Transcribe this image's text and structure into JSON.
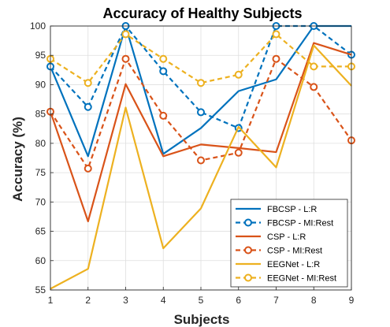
{
  "chart_data": {
    "type": "line",
    "title": "Accuracy of Healthy Subjects",
    "xlabel": "Subjects",
    "ylabel": "Accuracy (%)",
    "x": [
      1,
      2,
      3,
      4,
      5,
      6,
      7,
      8,
      9
    ],
    "xlim": [
      1,
      9
    ],
    "ylim": [
      55,
      100
    ],
    "xticks": [
      "1",
      "2",
      "3",
      "4",
      "5",
      "6",
      "7",
      "8",
      "9"
    ],
    "yticks": [
      "55",
      "60",
      "65",
      "70",
      "75",
      "80",
      "85",
      "90",
      "95",
      "100"
    ],
    "grid": true,
    "legend_position": "bottom-right",
    "series": [
      {
        "name": "FBCSP - L:R",
        "color": "#0072BD",
        "style": "solid",
        "marker": "none",
        "values": [
          93.1,
          77.8,
          100,
          78.2,
          82.6,
          88.9,
          90.9,
          100,
          100
        ]
      },
      {
        "name": "FBCSP - MI:Rest",
        "color": "#0072BD",
        "style": "dashed",
        "marker": "circle",
        "values": [
          93.1,
          86.2,
          100,
          92.3,
          85.3,
          82.6,
          100,
          100,
          95.1
        ]
      },
      {
        "name": "CSP - L:R",
        "color": "#D95319",
        "style": "solid",
        "marker": "none",
        "values": [
          85.4,
          66.7,
          90.1,
          77.8,
          79.8,
          79.2,
          78.5,
          97.1,
          95.1
        ]
      },
      {
        "name": "CSP - MI:Rest",
        "color": "#D95319",
        "style": "dashed",
        "marker": "circle",
        "values": [
          85.4,
          75.7,
          94.4,
          84.7,
          77.1,
          78.4,
          94.4,
          89.6,
          80.5
        ]
      },
      {
        "name": "EEGNet - L:R",
        "color": "#EDB120",
        "style": "solid",
        "marker": "none",
        "values": [
          55.2,
          58.6,
          86.1,
          62.1,
          68.9,
          82.8,
          75.9,
          96.7,
          89.8
        ]
      },
      {
        "name": "EEGNet - MI:Rest",
        "color": "#EDB120",
        "style": "dashed",
        "marker": "circle",
        "values": [
          94.4,
          90.3,
          98.6,
          94.4,
          90.3,
          91.7,
          98.6,
          93.1,
          93.1
        ]
      }
    ]
  }
}
